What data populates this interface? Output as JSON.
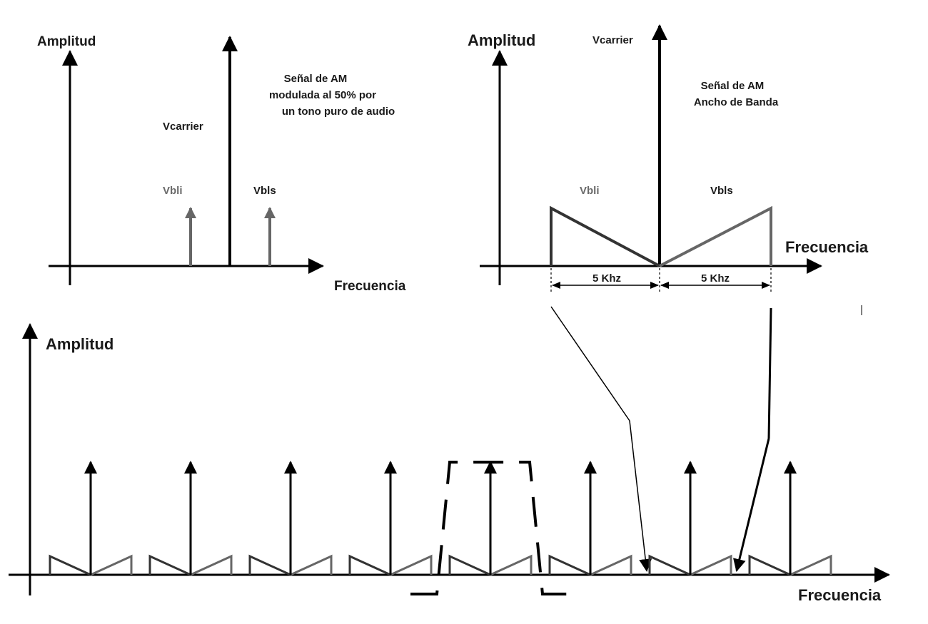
{
  "panel_top_left": {
    "y_label": "Amplitud",
    "x_label": "Frecuencia",
    "carrier_label": "Vcarrier",
    "lower_band_label": "Vbli",
    "upper_band_label": "Vbls",
    "description_lines": [
      "Señal de AM",
      "modulada al 50% por",
      "un tono puro de audio"
    ]
  },
  "panel_top_right": {
    "y_label": "Amplitud",
    "x_label": "Frecuencia",
    "carrier_label": "Vcarrier",
    "lower_band_label": "Vbli",
    "upper_band_label": "Vbls",
    "description_lines": [
      "Señal de AM",
      "Ancho de Banda"
    ],
    "bandwidth_left": "5 Khz",
    "bandwidth_right": "5 Khz"
  },
  "panel_bottom": {
    "y_label": "Amplitud",
    "x_label": "Frecuencia",
    "channel_count": 8,
    "filter_window_channel": 5
  },
  "colors": {
    "axis": "#000000",
    "sideband_gray": "#666666",
    "text_gray": "#6a6a6a"
  }
}
